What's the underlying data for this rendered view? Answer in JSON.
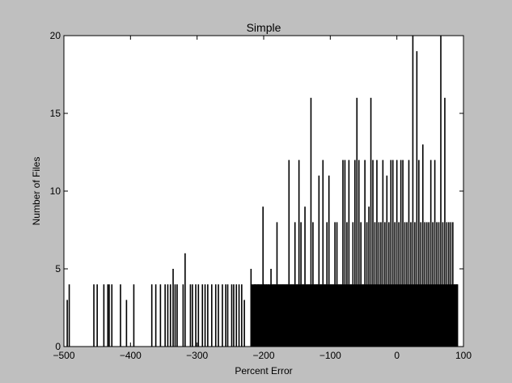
{
  "chart_data": {
    "type": "bar",
    "title": "Simple",
    "xlabel": "Percent Error",
    "ylabel": "Number of Files",
    "xlim": [
      -500,
      100
    ],
    "ylim": [
      0,
      20
    ],
    "x_ticks": [
      -500,
      -400,
      -300,
      -200,
      -100,
      0,
      100
    ],
    "y_ticks": [
      0,
      5,
      10,
      15,
      20
    ],
    "x_tick_labels": [
      "−500",
      "−400",
      "−300",
      "−200",
      "−100",
      "0",
      "100"
    ],
    "y_tick_labels": [
      "0",
      "5",
      "10",
      "15",
      "20"
    ],
    "grid": false,
    "bar_color": "#000000",
    "bars": [
      {
        "x": -495,
        "y": 3
      },
      {
        "x": -492,
        "y": 4
      },
      {
        "x": -455,
        "y": 4
      },
      {
        "x": -450,
        "y": 4
      },
      {
        "x": -440,
        "y": 4
      },
      {
        "x": -434,
        "y": 4
      },
      {
        "x": -432,
        "y": 4
      },
      {
        "x": -428,
        "y": 4
      },
      {
        "x": -415,
        "y": 4
      },
      {
        "x": -406,
        "y": 3
      },
      {
        "x": -395,
        "y": 4
      },
      {
        "x": -368,
        "y": 4
      },
      {
        "x": -362,
        "y": 4
      },
      {
        "x": -355,
        "y": 4
      },
      {
        "x": -348,
        "y": 4
      },
      {
        "x": -344,
        "y": 4
      },
      {
        "x": -340,
        "y": 4
      },
      {
        "x": -336,
        "y": 5
      },
      {
        "x": -333,
        "y": 4
      },
      {
        "x": -330,
        "y": 4
      },
      {
        "x": -321,
        "y": 4
      },
      {
        "x": -318,
        "y": 6
      },
      {
        "x": -310,
        "y": 4
      },
      {
        "x": -307,
        "y": 4
      },
      {
        "x": -302,
        "y": 4
      },
      {
        "x": -298,
        "y": 4
      },
      {
        "x": -292,
        "y": 4
      },
      {
        "x": -288,
        "y": 4
      },
      {
        "x": -284,
        "y": 4
      },
      {
        "x": -278,
        "y": 4
      },
      {
        "x": -272,
        "y": 4
      },
      {
        "x": -268,
        "y": 4
      },
      {
        "x": -262,
        "y": 4
      },
      {
        "x": -257,
        "y": 4
      },
      {
        "x": -254,
        "y": 4
      },
      {
        "x": -248,
        "y": 4
      },
      {
        "x": -245,
        "y": 4
      },
      {
        "x": -241,
        "y": 4
      },
      {
        "x": -237,
        "y": 4
      },
      {
        "x": -233,
        "y": 4
      },
      {
        "x": -229,
        "y": 3
      },
      {
        "x": -219,
        "y": 5
      },
      {
        "x": -214,
        "y": 4
      },
      {
        "x": -212,
        "y": 4
      },
      {
        "x": -209,
        "y": 4
      },
      {
        "x": -207,
        "y": 4
      },
      {
        "x": -204,
        "y": 4
      },
      {
        "x": -201,
        "y": 9
      },
      {
        "x": -199,
        "y": 4
      },
      {
        "x": -196,
        "y": 4
      },
      {
        "x": -193,
        "y": 4
      },
      {
        "x": -189,
        "y": 5
      },
      {
        "x": -186,
        "y": 4
      },
      {
        "x": -183,
        "y": 4
      },
      {
        "x": -180,
        "y": 8
      },
      {
        "x": -177,
        "y": 4
      },
      {
        "x": -174,
        "y": 4
      },
      {
        "x": -171,
        "y": 4
      },
      {
        "x": -168,
        "y": 4
      },
      {
        "x": -165,
        "y": 4
      },
      {
        "x": -162,
        "y": 12
      },
      {
        "x": -159,
        "y": 4
      },
      {
        "x": -156,
        "y": 4
      },
      {
        "x": -153,
        "y": 8
      },
      {
        "x": -150,
        "y": 4
      },
      {
        "x": -147,
        "y": 12
      },
      {
        "x": -144,
        "y": 8
      },
      {
        "x": -141,
        "y": 4
      },
      {
        "x": -138,
        "y": 9
      },
      {
        "x": -135,
        "y": 4
      },
      {
        "x": -132,
        "y": 4
      },
      {
        "x": -129,
        "y": 16
      },
      {
        "x": -126,
        "y": 8
      },
      {
        "x": -123,
        "y": 4
      },
      {
        "x": -120,
        "y": 4
      },
      {
        "x": -117,
        "y": 11
      },
      {
        "x": -114,
        "y": 4
      },
      {
        "x": -111,
        "y": 12
      },
      {
        "x": -108,
        "y": 4
      },
      {
        "x": -105,
        "y": 8
      },
      {
        "x": -102,
        "y": 11
      },
      {
        "x": -99,
        "y": 4
      },
      {
        "x": -96,
        "y": 4
      },
      {
        "x": -93,
        "y": 8
      },
      {
        "x": -90,
        "y": 8
      },
      {
        "x": -87,
        "y": 4
      },
      {
        "x": -84,
        "y": 4
      },
      {
        "x": -81,
        "y": 12
      },
      {
        "x": -78,
        "y": 12
      },
      {
        "x": -75,
        "y": 8
      },
      {
        "x": -72,
        "y": 12
      },
      {
        "x": -69,
        "y": 4
      },
      {
        "x": -66,
        "y": 8
      },
      {
        "x": -63,
        "y": 12
      },
      {
        "x": -60,
        "y": 16
      },
      {
        "x": -57,
        "y": 12
      },
      {
        "x": -54,
        "y": 8
      },
      {
        "x": -51,
        "y": 4
      },
      {
        "x": -48,
        "y": 12
      },
      {
        "x": -45,
        "y": 8
      },
      {
        "x": -42,
        "y": 9
      },
      {
        "x": -39,
        "y": 16
      },
      {
        "x": -36,
        "y": 12
      },
      {
        "x": -33,
        "y": 8
      },
      {
        "x": -30,
        "y": 12
      },
      {
        "x": -27,
        "y": 8
      },
      {
        "x": -24,
        "y": 8
      },
      {
        "x": -21,
        "y": 12
      },
      {
        "x": -18,
        "y": 8
      },
      {
        "x": -15,
        "y": 11
      },
      {
        "x": -12,
        "y": 8
      },
      {
        "x": -9,
        "y": 12
      },
      {
        "x": -6,
        "y": 12
      },
      {
        "x": -3,
        "y": 8
      },
      {
        "x": 0,
        "y": 12
      },
      {
        "x": 3,
        "y": 8
      },
      {
        "x": 6,
        "y": 12
      },
      {
        "x": 9,
        "y": 12
      },
      {
        "x": 12,
        "y": 8
      },
      {
        "x": 15,
        "y": 8
      },
      {
        "x": 18,
        "y": 12
      },
      {
        "x": 21,
        "y": 8
      },
      {
        "x": 24,
        "y": 20
      },
      {
        "x": 27,
        "y": 8
      },
      {
        "x": 30,
        "y": 19
      },
      {
        "x": 33,
        "y": 12
      },
      {
        "x": 36,
        "y": 8
      },
      {
        "x": 39,
        "y": 13
      },
      {
        "x": 42,
        "y": 8
      },
      {
        "x": 45,
        "y": 8
      },
      {
        "x": 48,
        "y": 8
      },
      {
        "x": 51,
        "y": 12
      },
      {
        "x": 54,
        "y": 8
      },
      {
        "x": 57,
        "y": 12
      },
      {
        "x": 60,
        "y": 8
      },
      {
        "x": 63,
        "y": 8
      },
      {
        "x": 66,
        "y": 20
      },
      {
        "x": 69,
        "y": 8
      },
      {
        "x": 72,
        "y": 16
      },
      {
        "x": 75,
        "y": 8
      },
      {
        "x": 78,
        "y": 8
      },
      {
        "x": 81,
        "y": 8
      },
      {
        "x": 84,
        "y": 8
      },
      {
        "x": 87,
        "y": 4
      },
      {
        "x": 90,
        "y": 4
      }
    ],
    "floor_bars": [
      {
        "x_start": -220,
        "x_end": 92,
        "y": 4
      }
    ]
  }
}
